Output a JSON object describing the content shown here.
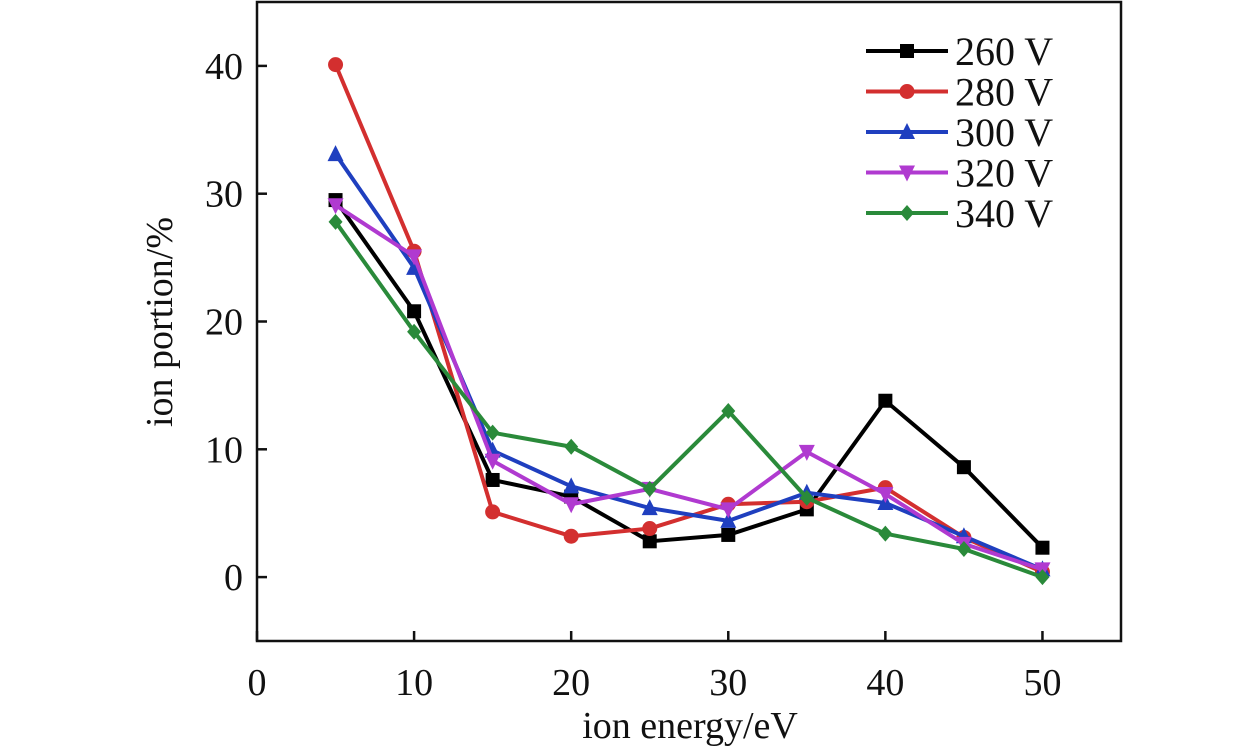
{
  "chart_data": {
    "type": "line",
    "xlabel": "ion energy/eV",
    "ylabel": "ion portion/%",
    "xlim": [
      0,
      55
    ],
    "ylim": [
      -5,
      45
    ],
    "xticks": [
      0,
      10,
      20,
      30,
      40,
      50
    ],
    "yticks": [
      0,
      10,
      20,
      30,
      40
    ],
    "x": [
      5,
      10,
      15,
      20,
      25,
      30,
      35,
      40,
      45,
      50
    ],
    "grid": false,
    "legend_position": "top-right",
    "series": [
      {
        "name": "260 V",
        "color": "#000000",
        "marker": "square",
        "values": [
          29.5,
          20.8,
          7.6,
          6.3,
          2.8,
          3.3,
          5.3,
          13.8,
          8.6,
          2.3
        ]
      },
      {
        "name": "280 V",
        "color": "#d32f2f",
        "marker": "circle",
        "values": [
          40.1,
          25.5,
          5.1,
          3.2,
          3.8,
          5.7,
          5.9,
          7.0,
          3.1,
          0.4
        ]
      },
      {
        "name": "300 V",
        "color": "#1f3fbf",
        "marker": "triangle-up",
        "values": [
          33.1,
          24.2,
          9.9,
          7.1,
          5.4,
          4.4,
          6.6,
          5.8,
          3.2,
          0.6
        ]
      },
      {
        "name": "320 V",
        "color": "#b03ad0",
        "marker": "triangle-down",
        "values": [
          29.1,
          25.1,
          9.1,
          5.7,
          6.9,
          5.3,
          9.8,
          6.5,
          2.6,
          0.6
        ]
      },
      {
        "name": "340 V",
        "color": "#2a8a3a",
        "marker": "diamond",
        "values": [
          27.8,
          19.2,
          11.3,
          10.2,
          6.9,
          13.0,
          6.2,
          3.4,
          2.2,
          0.0
        ]
      }
    ]
  }
}
